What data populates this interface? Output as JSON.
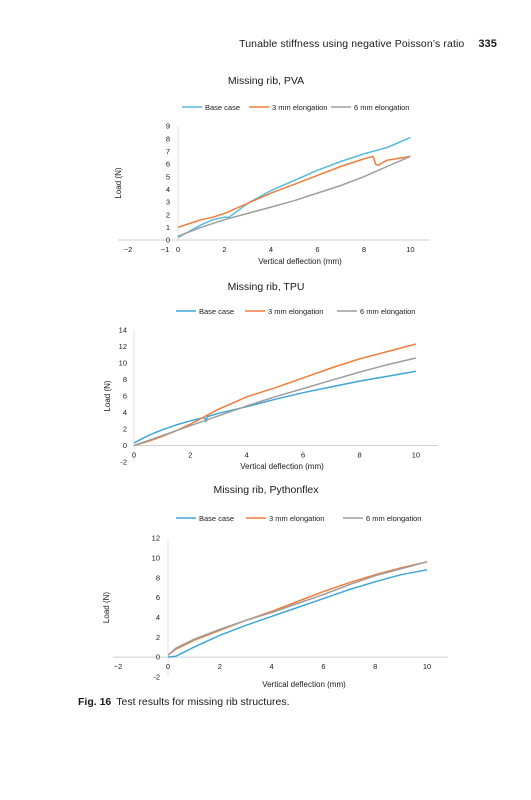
{
  "header": {
    "running_title": "Tunable stiffness using negative Poisson’s ratio",
    "page_number": "335"
  },
  "caption": {
    "label": "Fig. 16",
    "text": "Test results for missing rib structures."
  },
  "chart_data": [
    {
      "type": "line",
      "title": "Missing rib, PVA",
      "xlabel": "Vertical deflection (mm)",
      "ylabel": "Load (N)",
      "xticks": [
        -2,
        -1,
        0,
        2,
        4,
        6,
        8,
        10
      ],
      "yticks": [
        0,
        1,
        2,
        3,
        4,
        5,
        6,
        7,
        8,
        9
      ],
      "xlim": [
        -2,
        10.5
      ],
      "ylim": [
        0,
        9
      ],
      "legend": "top",
      "grid": false,
      "series": [
        {
          "name": "Base case",
          "color": "#5bb8df",
          "x": [
            0,
            0.5,
            1,
            1.5,
            2,
            2.2,
            3,
            4,
            5,
            6,
            7,
            8,
            9,
            10
          ],
          "y": [
            0.2,
            0.7,
            1.2,
            1.6,
            1.8,
            1.8,
            2.9,
            3.9,
            4.7,
            5.5,
            6.2,
            6.8,
            7.3,
            8.1
          ]
        },
        {
          "name": "3 mm elongation",
          "color": "#f07d3c",
          "x": [
            0,
            0.5,
            1,
            1.5,
            2,
            3,
            4,
            5,
            6,
            7,
            8,
            8.4,
            8.5,
            8.6,
            9,
            10
          ],
          "y": [
            1.0,
            1.3,
            1.6,
            1.8,
            2.1,
            2.9,
            3.7,
            4.4,
            5.1,
            5.8,
            6.4,
            6.6,
            6.0,
            5.9,
            6.3,
            6.6
          ]
        },
        {
          "name": "6 mm elongation",
          "color": "#9e9e9e",
          "x": [
            0,
            1,
            2,
            3,
            4,
            5,
            6,
            7,
            8,
            9,
            10
          ],
          "y": [
            0.3,
            1.0,
            1.6,
            2.1,
            2.6,
            3.1,
            3.7,
            4.3,
            5.0,
            5.8,
            6.6
          ]
        }
      ]
    },
    {
      "type": "line",
      "title": "Missing rib, TPU",
      "xlabel": "Vertical deflection (mm)",
      "ylabel": "Load (N)",
      "xticks": [
        0,
        2,
        4,
        6,
        8,
        10
      ],
      "yticks": [
        -2,
        0,
        2,
        4,
        6,
        8,
        10,
        12,
        14
      ],
      "xlim": [
        0,
        10.5
      ],
      "ylim": [
        -2,
        14
      ],
      "legend": "top",
      "grid": false,
      "series": [
        {
          "name": "Base case",
          "color": "#3fa5d8",
          "x": [
            0,
            0.5,
            1,
            1.5,
            2,
            2.5,
            2.55,
            2.6,
            3,
            4,
            5,
            6,
            7,
            8,
            9,
            10
          ],
          "y": [
            0.3,
            1.2,
            1.9,
            2.5,
            3.0,
            3.4,
            2.9,
            3.5,
            3.9,
            4.7,
            5.6,
            6.4,
            7.1,
            7.8,
            8.4,
            9.0
          ]
        },
        {
          "name": "3 mm elongation",
          "color": "#f07d3c",
          "x": [
            0,
            0.5,
            1,
            1.5,
            2,
            2.5,
            3,
            4,
            5,
            6,
            7,
            8,
            9,
            10
          ],
          "y": [
            0,
            0.5,
            1.1,
            1.8,
            2.6,
            3.5,
            4.4,
            5.9,
            7.0,
            8.2,
            9.4,
            10.5,
            11.4,
            12.3
          ]
        },
        {
          "name": "6 mm elongation",
          "color": "#9e9e9e",
          "x": [
            0,
            0.5,
            1,
            2,
            3,
            4,
            5,
            6,
            7,
            8,
            9,
            10
          ],
          "y": [
            0,
            0.6,
            1.2,
            2.4,
            3.6,
            4.8,
            5.9,
            6.9,
            7.9,
            8.9,
            9.8,
            10.6
          ]
        }
      ]
    },
    {
      "type": "line",
      "title": "Missing rib, Pythonflex",
      "xlabel": "Vertical deflection (mm)",
      "ylabel": "Load (N)",
      "xticks": [
        -2,
        0,
        2,
        4,
        6,
        8,
        10
      ],
      "yticks": [
        -2,
        0,
        2,
        4,
        6,
        8,
        10,
        12
      ],
      "xlim": [
        -2,
        10.5
      ],
      "ylim": [
        -2,
        12
      ],
      "legend": "top",
      "grid": false,
      "series": [
        {
          "name": "Base case",
          "color": "#3fa5d8",
          "x": [
            0,
            0.3,
            1,
            2,
            3,
            4,
            5,
            6,
            7,
            8,
            9,
            10
          ],
          "y": [
            0,
            0.1,
            1.0,
            2.2,
            3.2,
            4.1,
            5.0,
            5.9,
            6.8,
            7.6,
            8.3,
            8.8
          ]
        },
        {
          "name": "3 mm elongation",
          "color": "#f07d3c",
          "x": [
            0,
            0.3,
            1,
            2,
            3,
            4,
            5,
            6,
            7,
            8,
            9,
            10
          ],
          "y": [
            0.2,
            0.8,
            1.7,
            2.7,
            3.7,
            4.6,
            5.6,
            6.6,
            7.5,
            8.3,
            9.0,
            9.6
          ]
        },
        {
          "name": "6 mm elongation",
          "color": "#9e9e9e",
          "x": [
            0,
            0.3,
            1,
            2,
            3,
            4,
            5,
            6,
            7,
            8,
            9,
            10
          ],
          "y": [
            0.2,
            0.9,
            1.8,
            2.8,
            3.7,
            4.5,
            5.4,
            6.3,
            7.3,
            8.2,
            8.9,
            9.6
          ]
        }
      ]
    }
  ]
}
